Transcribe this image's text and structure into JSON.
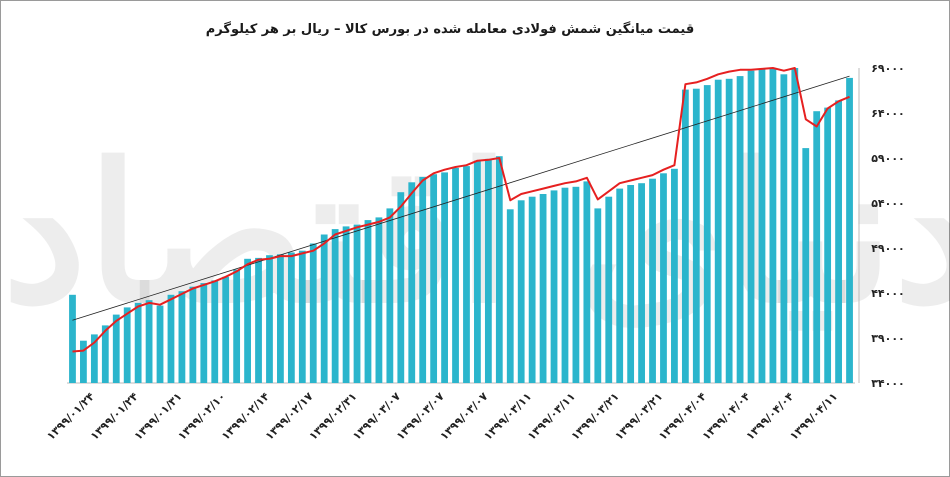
{
  "title": "قیمت میانگین شمش فولادی معامله شده در بورس کالا – ریال بر هر کیلوگرم",
  "watermark": "دنیای اقتصاد",
  "colors": {
    "bars": "#2bb5cc",
    "line": "#e62020",
    "trend": "#222222",
    "axis": "#bbbbbb"
  },
  "chart_data": {
    "type": "bar",
    "ylim": [
      34000,
      69000
    ],
    "yticks": [
      "۳۴۰۰۰",
      "۳۹۰۰۰",
      "۴۴۰۰۰",
      "۴۹۰۰۰",
      "۵۴۰۰۰",
      "۵۹۰۰۰",
      "۶۴۰۰۰",
      "۶۹۰۰۰"
    ],
    "ytick_values": [
      34000,
      39000,
      44000,
      49000,
      54000,
      59000,
      64000,
      69000
    ],
    "grid": false,
    "xtick_labels": [
      "۱۳۹۹/۰۱/۲۴",
      "۱۳۹۹/۰۱/۲۴",
      "۱۳۹۹/۰۱/۳۱",
      "۱۳۹۹/۰۲/۱۰",
      "۱۳۹۹/۰۲/۱۴",
      "۱۳۹۹/۰۲/۱۷",
      "۱۳۹۹/۰۲/۳۱",
      "۱۳۹۹/۰۳/۰۷",
      "۱۳۹۹/۰۳/۰۷",
      "۱۳۹۹/۰۳/۰۷",
      "۱۳۹۹/۰۳/۱۱",
      "۱۳۹۹/۰۳/۱۱",
      "۱۳۹۹/۰۳/۲۱",
      "۱۳۹۹/۰۳/۲۱",
      "۱۳۹۹/۰۴/۰۴",
      "۱۳۹۹/۰۴/۰۴",
      "۱۳۹۹/۰۴/۰۴",
      "۱۳۹۹/۰۴/۱۱"
    ],
    "bars": [
      43800,
      38700,
      39400,
      40400,
      41600,
      42400,
      42900,
      43200,
      42600,
      43800,
      44200,
      44700,
      45100,
      45400,
      45800,
      46600,
      47800,
      47900,
      48200,
      48300,
      48500,
      48700,
      49500,
      50500,
      51100,
      51400,
      51600,
      52100,
      52400,
      53400,
      55200,
      56300,
      56900,
      57200,
      57400,
      57900,
      58100,
      58700,
      58900,
      59200,
      53300,
      54300,
      54700,
      55000,
      55400,
      55700,
      55800,
      56400,
      53400,
      54700,
      55600,
      56000,
      56200,
      56700,
      57300,
      57800,
      66600,
      66700,
      67100,
      67700,
      67800,
      68100,
      68700,
      68900,
      69000,
      68300,
      69000,
      60100,
      64200,
      64600,
      65400,
      67900
    ],
    "line": [
      37500,
      37600,
      38500,
      39800,
      40900,
      41700,
      42500,
      42900,
      42700,
      43300,
      43900,
      44500,
      44900,
      45300,
      45800,
      46400,
      47200,
      47700,
      47800,
      48100,
      48100,
      48400,
      48700,
      49500,
      50500,
      50900,
      51300,
      51600,
      51900,
      52400,
      53600,
      55100,
      56500,
      57300,
      57700,
      58000,
      58200,
      58700,
      58800,
      59000,
      54300,
      55000,
      55300,
      55600,
      55900,
      56200,
      56400,
      56800,
      54400,
      55300,
      56200,
      56500,
      56800,
      57100,
      57700,
      58200,
      67200,
      67400,
      67800,
      68300,
      68600,
      68800,
      68800,
      68900,
      69000,
      68700,
      69000,
      63300,
      62500,
      64500,
      65300,
      65800
    ]
  }
}
